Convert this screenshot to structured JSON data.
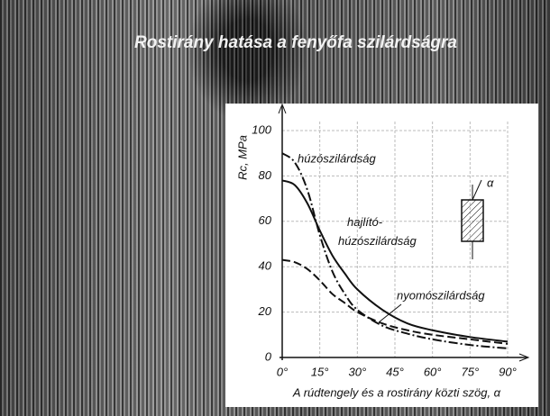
{
  "chart_data": {
    "type": "line",
    "title": "Rostirány hatása a fenyőfa szilárdságra",
    "x_label": "A rúdtengely és a rostirány közti szög, α",
    "y_label": "Rc, MPa",
    "inset_label": "α",
    "x": [
      0,
      5,
      10,
      15,
      20,
      25,
      30,
      40,
      50,
      60,
      75,
      90
    ],
    "series": [
      {
        "name": "húzószilárdság",
        "color": "#111111",
        "style": "dash-dot",
        "values": [
          90,
          86,
          74,
          54,
          38,
          28,
          21,
          14,
          10.5,
          8,
          5.5,
          4
        ]
      },
      {
        "name": "hajlító-húzószilárdság",
        "color": "#111111",
        "style": "solid",
        "values": [
          78,
          76,
          68,
          56,
          45,
          37,
          30,
          21,
          15,
          12,
          9,
          7
        ]
      },
      {
        "name": "nyomószilárdság",
        "color": "#111111",
        "style": "dash",
        "values": [
          43,
          42,
          39,
          34,
          28,
          24,
          20,
          15,
          12,
          10,
          8,
          6
        ]
      }
    ],
    "xlim": [
      0,
      90
    ],
    "xticks": [
      {
        "value": 0,
        "label": "0°"
      },
      {
        "value": 15,
        "label": "15°"
      },
      {
        "value": 30,
        "label": "30°"
      },
      {
        "value": 45,
        "label": "45°"
      },
      {
        "value": 60,
        "label": "60°"
      },
      {
        "value": 75,
        "label": "75°"
      },
      {
        "value": 90,
        "label": "90°"
      }
    ],
    "ylim": [
      0,
      100
    ],
    "yticks": [
      0,
      20,
      40,
      60,
      80,
      100
    ],
    "grid": true
  }
}
